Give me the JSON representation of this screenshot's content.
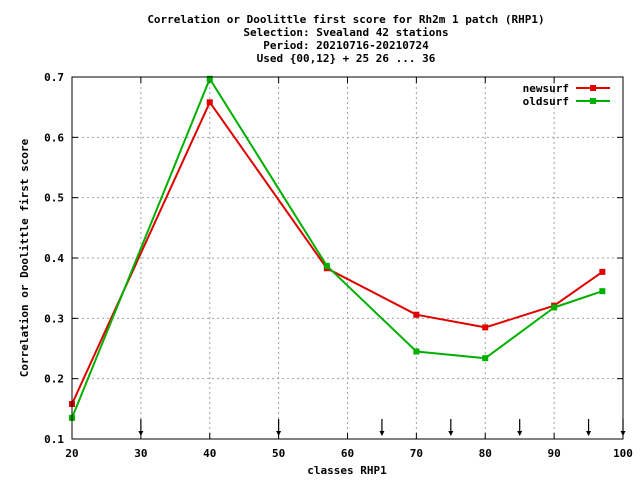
{
  "chart_data": {
    "type": "line",
    "title_lines": [
      "Correlation or Doolittle first score  for Rh2m 1 patch (RHP1)",
      "Selection: Svealand     42 stations",
      "Period: 20210716-20210724",
      "Used {00,12} + 25 26 ... 36"
    ],
    "xlabel": "classes RHP1",
    "ylabel": "Correlation or Doolittle first score",
    "xlim": [
      20,
      100
    ],
    "ylim": [
      0.1,
      0.7
    ],
    "x_ticks": [
      "20",
      "30",
      "40",
      "50",
      "60",
      "70",
      "80",
      "90",
      "100"
    ],
    "y_ticks": [
      "0.1",
      "0.2",
      "0.3",
      "0.4",
      "0.5",
      "0.6",
      "0.7"
    ],
    "grid": true,
    "legend_position": "top-right",
    "series": [
      {
        "name": "newsurf",
        "color": "#e00000",
        "x": [
          20,
          40,
          57,
          70,
          80,
          90,
          97
        ],
        "y": [
          0.158,
          0.658,
          0.383,
          0.306,
          0.285,
          0.321,
          0.377
        ]
      },
      {
        "name": "oldsurf",
        "color": "#00b000",
        "x": [
          20,
          40,
          57,
          70,
          80,
          90,
          97
        ],
        "y": [
          0.135,
          0.697,
          0.387,
          0.245,
          0.234,
          0.318,
          0.345
        ]
      }
    ],
    "arrow_markers_x": [
      30,
      50,
      65,
      75,
      85,
      95,
      100
    ]
  }
}
